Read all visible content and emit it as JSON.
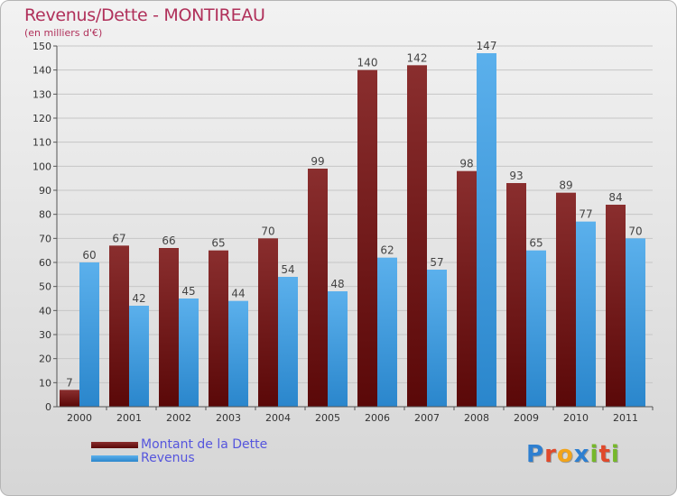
{
  "chart_data": {
    "type": "bar",
    "title": "Revenus/Dette - MONTIREAU",
    "subtitle": "(en milliers d'€)",
    "categories": [
      "2000",
      "2001",
      "2002",
      "2003",
      "2004",
      "2005",
      "2006",
      "2007",
      "2008",
      "2009",
      "2010",
      "2011"
    ],
    "series": [
      {
        "name": "Montant de la Dette",
        "values": [
          7,
          67,
          66,
          65,
          70,
          99,
          140,
          142,
          98,
          93,
          89,
          84
        ],
        "color": "#7a2020"
      },
      {
        "name": "Revenus",
        "values": [
          60,
          42,
          45,
          44,
          54,
          48,
          62,
          57,
          147,
          65,
          77,
          70
        ],
        "color": "#4aa3e3"
      }
    ],
    "ylim": [
      0,
      150
    ],
    "yticks": [
      0,
      10,
      20,
      30,
      40,
      50,
      60,
      70,
      80,
      90,
      100,
      110,
      120,
      130,
      140,
      150
    ],
    "grid": true,
    "legend_position": "bottom-left"
  },
  "logo": {
    "text": "Proxiti",
    "letters": [
      "P",
      "r",
      "o",
      "x",
      "i",
      "t",
      "i"
    ],
    "colors": [
      "#2e7fd0",
      "#e0492b",
      "#f2a41a",
      "#2e7fd0",
      "#76b82a",
      "#e0492b",
      "#76b82a"
    ]
  }
}
